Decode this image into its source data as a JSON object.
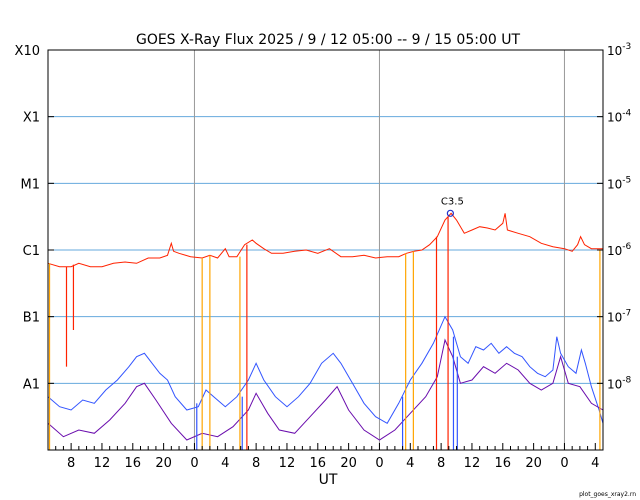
{
  "chart_data": {
    "type": "line",
    "title": "GOES X-Ray Flux   2025  /  9  /  12    05:00 --   9  /  15    05:00    UT",
    "xlabel": "UT",
    "ylabel": "",
    "x_unit": "hours since 2025-09-12 05:00 UT",
    "xlim": [
      0,
      72
    ],
    "x_ticks": [
      {
        "x": 3,
        "label": "8"
      },
      {
        "x": 7,
        "label": "12"
      },
      {
        "x": 11,
        "label": "16"
      },
      {
        "x": 15,
        "label": "20"
      },
      {
        "x": 19,
        "label": "0"
      },
      {
        "x": 23,
        "label": "4"
      },
      {
        "x": 27,
        "label": "8"
      },
      {
        "x": 31,
        "label": "12"
      },
      {
        "x": 35,
        "label": "16"
      },
      {
        "x": 39,
        "label": "20"
      },
      {
        "x": 43,
        "label": "0"
      },
      {
        "x": 47,
        "label": "4"
      },
      {
        "x": 51,
        "label": "8"
      },
      {
        "x": 55,
        "label": "12"
      },
      {
        "x": 59,
        "label": "16"
      },
      {
        "x": 63,
        "label": "20"
      },
      {
        "x": 67,
        "label": "0"
      },
      {
        "x": 71,
        "label": "4"
      }
    ],
    "day_boundaries": [
      19,
      43,
      67
    ],
    "y_scale": "log",
    "ylim": [
      -9,
      -3
    ],
    "y_left_labels": [
      {
        "y": -8,
        "label": "A1"
      },
      {
        "y": -7,
        "label": "B1"
      },
      {
        "y": -6,
        "label": "C1"
      },
      {
        "y": -5,
        "label": "M1"
      },
      {
        "y": -4,
        "label": "X1"
      },
      {
        "y": -3,
        "label": "X10"
      }
    ],
    "y_right_labels": [
      {
        "y": -8,
        "base": "10",
        "exp": "-8"
      },
      {
        "y": -7,
        "base": "10",
        "exp": "-7"
      },
      {
        "y": -6,
        "base": "10",
        "exp": "-6"
      },
      {
        "y": -5,
        "base": "10",
        "exp": "-5"
      },
      {
        "y": -4,
        "base": "10",
        "exp": "-4"
      },
      {
        "y": -3,
        "base": "10",
        "exp": "-3"
      }
    ],
    "grid": true,
    "annotation": {
      "label": "C3.5",
      "x": 52.2,
      "y": -5.45
    },
    "series": [
      {
        "color": "#ff2200",
        "values": [
          [
            0.0,
            -6.2
          ],
          [
            1.5,
            -6.25
          ],
          [
            3.0,
            -6.25
          ],
          [
            4.0,
            -6.2
          ],
          [
            5.5,
            -6.25
          ],
          [
            7.0,
            -6.25
          ],
          [
            8.5,
            -6.2
          ],
          [
            10.0,
            -6.18
          ],
          [
            11.5,
            -6.2
          ],
          [
            13.0,
            -6.12
          ],
          [
            14.5,
            -6.12
          ],
          [
            15.5,
            -6.08
          ],
          [
            16.0,
            -5.9
          ],
          [
            16.3,
            -6.02
          ],
          [
            17.0,
            -6.05
          ],
          [
            18.5,
            -6.1
          ],
          [
            20.0,
            -6.12
          ],
          [
            21.0,
            -6.08
          ],
          [
            22.0,
            -6.12
          ],
          [
            23.0,
            -5.98
          ],
          [
            23.5,
            -6.1
          ],
          [
            24.5,
            -6.1
          ],
          [
            25.5,
            -5.92
          ],
          [
            26.5,
            -5.85
          ],
          [
            27.0,
            -5.9
          ],
          [
            28.0,
            -5.98
          ],
          [
            29.0,
            -6.05
          ],
          [
            30.5,
            -6.05
          ],
          [
            32.0,
            -6.02
          ],
          [
            33.5,
            -6.0
          ],
          [
            35.0,
            -6.05
          ],
          [
            36.5,
            -5.98
          ],
          [
            38.0,
            -6.1
          ],
          [
            39.5,
            -6.1
          ],
          [
            41.0,
            -6.08
          ],
          [
            42.5,
            -6.12
          ],
          [
            44.0,
            -6.1
          ],
          [
            45.5,
            -6.1
          ],
          [
            46.5,
            -6.05
          ],
          [
            47.5,
            -6.02
          ],
          [
            48.5,
            -6.0
          ],
          [
            49.5,
            -5.92
          ],
          [
            50.5,
            -5.8
          ],
          [
            51.5,
            -5.55
          ],
          [
            52.3,
            -5.45
          ],
          [
            53.0,
            -5.55
          ],
          [
            54.0,
            -5.75
          ],
          [
            55.0,
            -5.7
          ],
          [
            56.0,
            -5.65
          ],
          [
            57.0,
            -5.67
          ],
          [
            58.0,
            -5.7
          ],
          [
            59.0,
            -5.6
          ],
          [
            59.3,
            -5.45
          ],
          [
            59.6,
            -5.7
          ],
          [
            61.0,
            -5.75
          ],
          [
            62.5,
            -5.8
          ],
          [
            64.0,
            -5.9
          ],
          [
            65.5,
            -5.95
          ],
          [
            67.0,
            -5.98
          ],
          [
            68.0,
            -6.02
          ],
          [
            68.7,
            -5.92
          ],
          [
            69.1,
            -5.8
          ],
          [
            69.6,
            -5.92
          ],
          [
            70.5,
            -5.98
          ],
          [
            72.0,
            -5.98
          ]
        ]
      },
      {
        "color": "#3355ff",
        "values": [
          [
            0.0,
            -8.2
          ],
          [
            1.5,
            -8.35
          ],
          [
            3.0,
            -8.4
          ],
          [
            4.5,
            -8.25
          ],
          [
            6.0,
            -8.3
          ],
          [
            7.5,
            -8.1
          ],
          [
            9.0,
            -7.95
          ],
          [
            10.5,
            -7.75
          ],
          [
            11.5,
            -7.6
          ],
          [
            12.5,
            -7.55
          ],
          [
            13.5,
            -7.7
          ],
          [
            14.5,
            -7.85
          ],
          [
            15.5,
            -7.95
          ],
          [
            16.5,
            -8.2
          ],
          [
            18.0,
            -8.4
          ],
          [
            19.5,
            -8.35
          ],
          [
            20.5,
            -8.1
          ],
          [
            21.5,
            -8.2
          ],
          [
            23.0,
            -8.35
          ],
          [
            24.5,
            -8.2
          ],
          [
            26.0,
            -7.95
          ],
          [
            27.0,
            -7.7
          ],
          [
            28.0,
            -7.95
          ],
          [
            29.5,
            -8.2
          ],
          [
            31.0,
            -8.35
          ],
          [
            32.5,
            -8.2
          ],
          [
            34.0,
            -8.0
          ],
          [
            35.5,
            -7.7
          ],
          [
            37.0,
            -7.55
          ],
          [
            38.0,
            -7.7
          ],
          [
            39.5,
            -8.0
          ],
          [
            41.0,
            -8.3
          ],
          [
            42.5,
            -8.5
          ],
          [
            44.0,
            -8.6
          ],
          [
            45.5,
            -8.3
          ],
          [
            47.0,
            -7.95
          ],
          [
            48.5,
            -7.7
          ],
          [
            50.0,
            -7.4
          ],
          [
            51.5,
            -7.0
          ],
          [
            52.5,
            -7.2
          ],
          [
            53.5,
            -7.6
          ],
          [
            54.5,
            -7.7
          ],
          [
            55.5,
            -7.45
          ],
          [
            56.5,
            -7.5
          ],
          [
            57.5,
            -7.4
          ],
          [
            58.5,
            -7.55
          ],
          [
            59.5,
            -7.45
          ],
          [
            60.5,
            -7.55
          ],
          [
            61.5,
            -7.6
          ],
          [
            62.5,
            -7.75
          ],
          [
            63.5,
            -7.85
          ],
          [
            64.5,
            -7.9
          ],
          [
            65.5,
            -7.8
          ],
          [
            66.0,
            -7.3
          ],
          [
            66.5,
            -7.55
          ],
          [
            67.5,
            -7.75
          ],
          [
            68.5,
            -7.85
          ],
          [
            69.2,
            -7.5
          ],
          [
            69.7,
            -7.7
          ],
          [
            70.5,
            -8.05
          ],
          [
            71.5,
            -8.4
          ],
          [
            72.0,
            -8.6
          ]
        ]
      },
      {
        "color": "#6a0dad",
        "values": [
          [
            0.0,
            -8.6
          ],
          [
            2.0,
            -8.8
          ],
          [
            4.0,
            -8.7
          ],
          [
            6.0,
            -8.75
          ],
          [
            8.0,
            -8.55
          ],
          [
            10.0,
            -8.3
          ],
          [
            11.5,
            -8.05
          ],
          [
            12.5,
            -8.0
          ],
          [
            14.0,
            -8.25
          ],
          [
            16.0,
            -8.6
          ],
          [
            18.0,
            -8.85
          ],
          [
            20.0,
            -8.75
          ],
          [
            22.0,
            -8.8
          ],
          [
            24.0,
            -8.65
          ],
          [
            26.0,
            -8.4
          ],
          [
            27.0,
            -8.15
          ],
          [
            28.5,
            -8.45
          ],
          [
            30.0,
            -8.7
          ],
          [
            32.0,
            -8.75
          ],
          [
            34.0,
            -8.5
          ],
          [
            36.0,
            -8.25
          ],
          [
            37.5,
            -8.05
          ],
          [
            39.0,
            -8.4
          ],
          [
            41.0,
            -8.7
          ],
          [
            43.0,
            -8.85
          ],
          [
            45.0,
            -8.7
          ],
          [
            47.0,
            -8.45
          ],
          [
            49.0,
            -8.2
          ],
          [
            50.5,
            -7.9
          ],
          [
            51.5,
            -7.35
          ],
          [
            52.5,
            -7.6
          ],
          [
            53.5,
            -8.0
          ],
          [
            55.0,
            -7.95
          ],
          [
            56.5,
            -7.75
          ],
          [
            58.0,
            -7.85
          ],
          [
            59.5,
            -7.7
          ],
          [
            61.0,
            -7.8
          ],
          [
            62.5,
            -8.0
          ],
          [
            64.0,
            -8.1
          ],
          [
            65.5,
            -8.0
          ],
          [
            66.5,
            -7.6
          ],
          [
            67.5,
            -8.0
          ],
          [
            69.0,
            -8.05
          ],
          [
            70.5,
            -8.3
          ],
          [
            72.0,
            -8.4
          ]
        ]
      }
    ],
    "dropouts": [
      {
        "x": 2.4,
        "from": -6.25,
        "to": -7.75,
        "color": "#ff2200"
      },
      {
        "x": 3.3,
        "from": -6.22,
        "to": -7.2,
        "color": "#ff2200"
      },
      {
        "x": 0.2,
        "from": -6.2,
        "to": -9.0,
        "color": "#ffa500"
      },
      {
        "x": 20.0,
        "from": -6.12,
        "to": -9.0,
        "color": "#ffa500"
      },
      {
        "x": 21.0,
        "from": -6.08,
        "to": -9.0,
        "color": "#ffa500"
      },
      {
        "x": 24.9,
        "from": -6.1,
        "to": -9.0,
        "color": "#ffa500"
      },
      {
        "x": 25.8,
        "from": -5.92,
        "to": -9.0,
        "color": "#ff2200"
      },
      {
        "x": 46.4,
        "from": -6.05,
        "to": -9.0,
        "color": "#ffa500"
      },
      {
        "x": 47.4,
        "from": -6.02,
        "to": -9.0,
        "color": "#ffa500"
      },
      {
        "x": 50.4,
        "from": -5.8,
        "to": -9.0,
        "color": "#ff2200"
      },
      {
        "x": 51.9,
        "from": -5.5,
        "to": -9.0,
        "color": "#ff2200"
      },
      {
        "x": 71.6,
        "from": -6.0,
        "to": -9.0,
        "color": "#ffa500"
      },
      {
        "x": 19.3,
        "from": -8.3,
        "to": -9.0,
        "color": "#3355ff"
      },
      {
        "x": 25.2,
        "from": -8.2,
        "to": -9.0,
        "color": "#3355ff"
      },
      {
        "x": 46.0,
        "from": -8.2,
        "to": -9.0,
        "color": "#3355ff"
      },
      {
        "x": 52.6,
        "from": -7.3,
        "to": -9.0,
        "color": "#3355ff"
      },
      {
        "x": 53.1,
        "from": -7.6,
        "to": -9.0,
        "color": "#3355ff"
      }
    ]
  },
  "credit": "plot_goes_xray2.rn"
}
